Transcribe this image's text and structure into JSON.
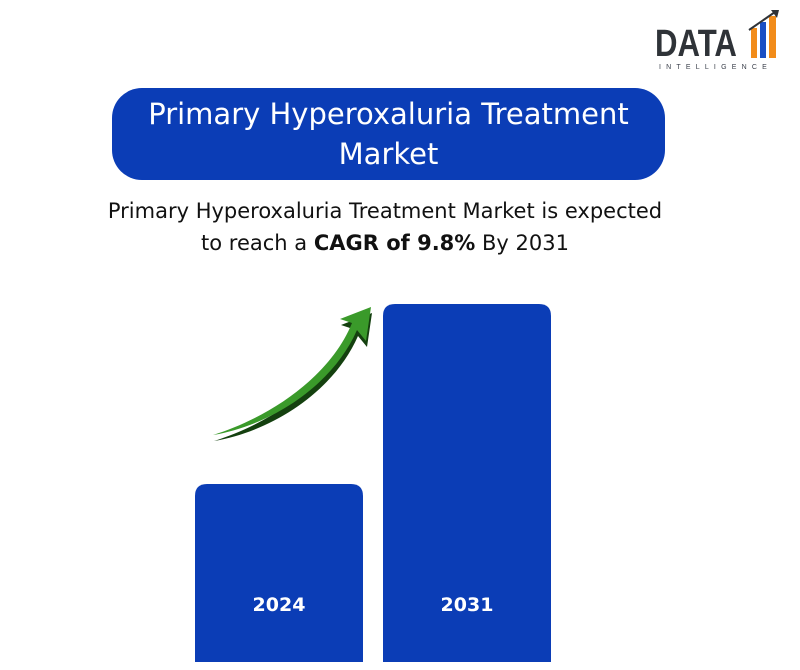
{
  "logo": {
    "word": "DATA",
    "sub": "INTELLIGENCE",
    "colors": {
      "dark": "#2f3338",
      "blue": "#1a4fc4",
      "orange": "#f28c1a"
    },
    "icon": "bar-chart-logo-icon"
  },
  "title": "Primary Hyperoxaluria Treatment Market",
  "subtitle": {
    "part1": "Primary Hyperoxaluria Treatment Market is expected to reach a ",
    "bold": "CAGR of 9.8%",
    "part2": " By 2031"
  },
  "colors": {
    "bar": "#0b3db6",
    "title_bg": "#0b3db6",
    "arrow": "#3a9a2a",
    "arrow_shadow": "#14400f"
  },
  "chart_data": {
    "type": "bar",
    "categories": [
      "2024",
      "2031"
    ],
    "values": [
      178,
      358
    ],
    "title": "",
    "xlabel": "",
    "ylabel": "",
    "ylim": [
      0,
      360
    ],
    "grid": false,
    "annotation": "green-upward-arrow-icon"
  }
}
